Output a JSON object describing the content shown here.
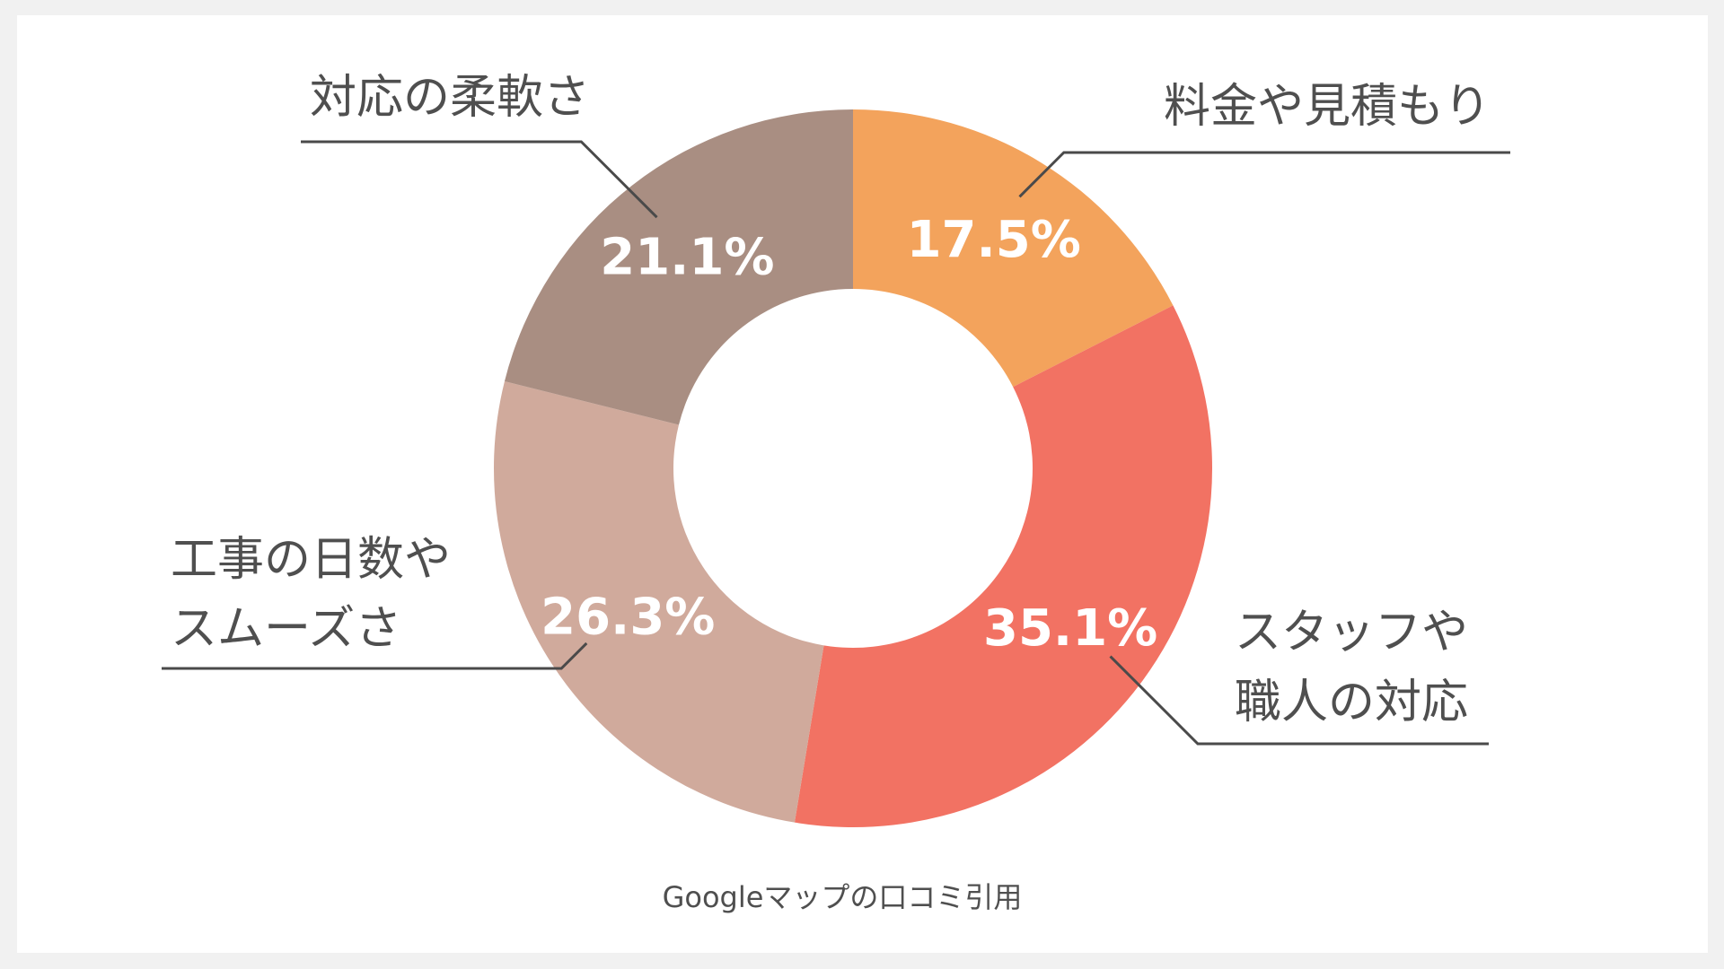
{
  "chart_data": {
    "type": "pie",
    "donut": true,
    "categories": [
      "料金や見積もり",
      "スタッフや職人の対応",
      "工事の日数やスムーズさ",
      "対応の柔軟さ"
    ],
    "label_lines": [
      [
        "料金や見積もり"
      ],
      [
        "スタッフや",
        "職人の対応"
      ],
      [
        "工事の日数や",
        "スムーズさ"
      ],
      [
        "対応の柔軟さ"
      ]
    ],
    "values": [
      17.5,
      35.1,
      26.3,
      21.1
    ],
    "value_labels": [
      "17.5%",
      "35.1%",
      "26.3%",
      "21.1%"
    ],
    "colors": [
      "#f3a35c",
      "#f27263",
      "#d0aa9c",
      "#a98e82"
    ],
    "start": "12 o'clock",
    "direction": "clockwise",
    "source": "Googleマップの口コミ引用"
  }
}
